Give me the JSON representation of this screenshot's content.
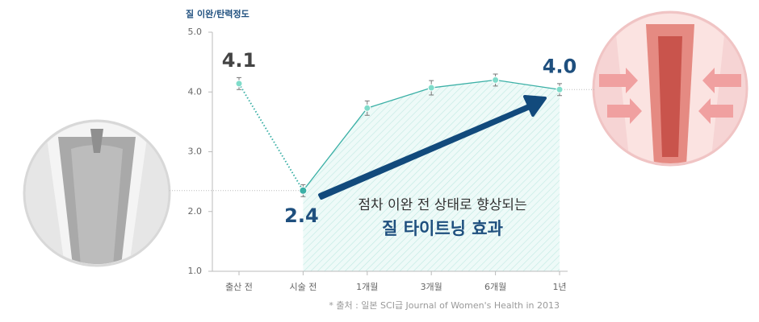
{
  "chart_data": {
    "type": "line",
    "y_label": "질 이완/탄력정도",
    "categories": [
      "출산 전",
      "시술 전",
      "1개월",
      "3개월",
      "6개월",
      "1년"
    ],
    "values": [
      4.14,
      2.35,
      3.73,
      4.07,
      4.2,
      4.04
    ],
    "errors": [
      0.1,
      0.1,
      0.12,
      0.12,
      0.1,
      0.1
    ],
    "value_labels": [
      "4.1",
      "2.4",
      null,
      null,
      null,
      "4.0"
    ],
    "color": "#3bb0a6",
    "marker_color": "#7fdcca",
    "dotted_segments": [
      0
    ],
    "ylim": [
      1,
      5
    ],
    "yticks": [
      {
        "value": 1,
        "label": "1.0"
      },
      {
        "value": 2,
        "label": "2.0"
      },
      {
        "value": 3,
        "label": "3.0"
      },
      {
        "value": 4,
        "label": "4.0"
      },
      {
        "value": 5,
        "label": "5.0"
      }
    ],
    "annotation_line1": "점차 이완 전 상태로 향상되는",
    "annotation_line2": "질 타이트닝 효과",
    "source": "* 출처 : 일본 SCI급 Journal of Women's Health in 2013"
  }
}
